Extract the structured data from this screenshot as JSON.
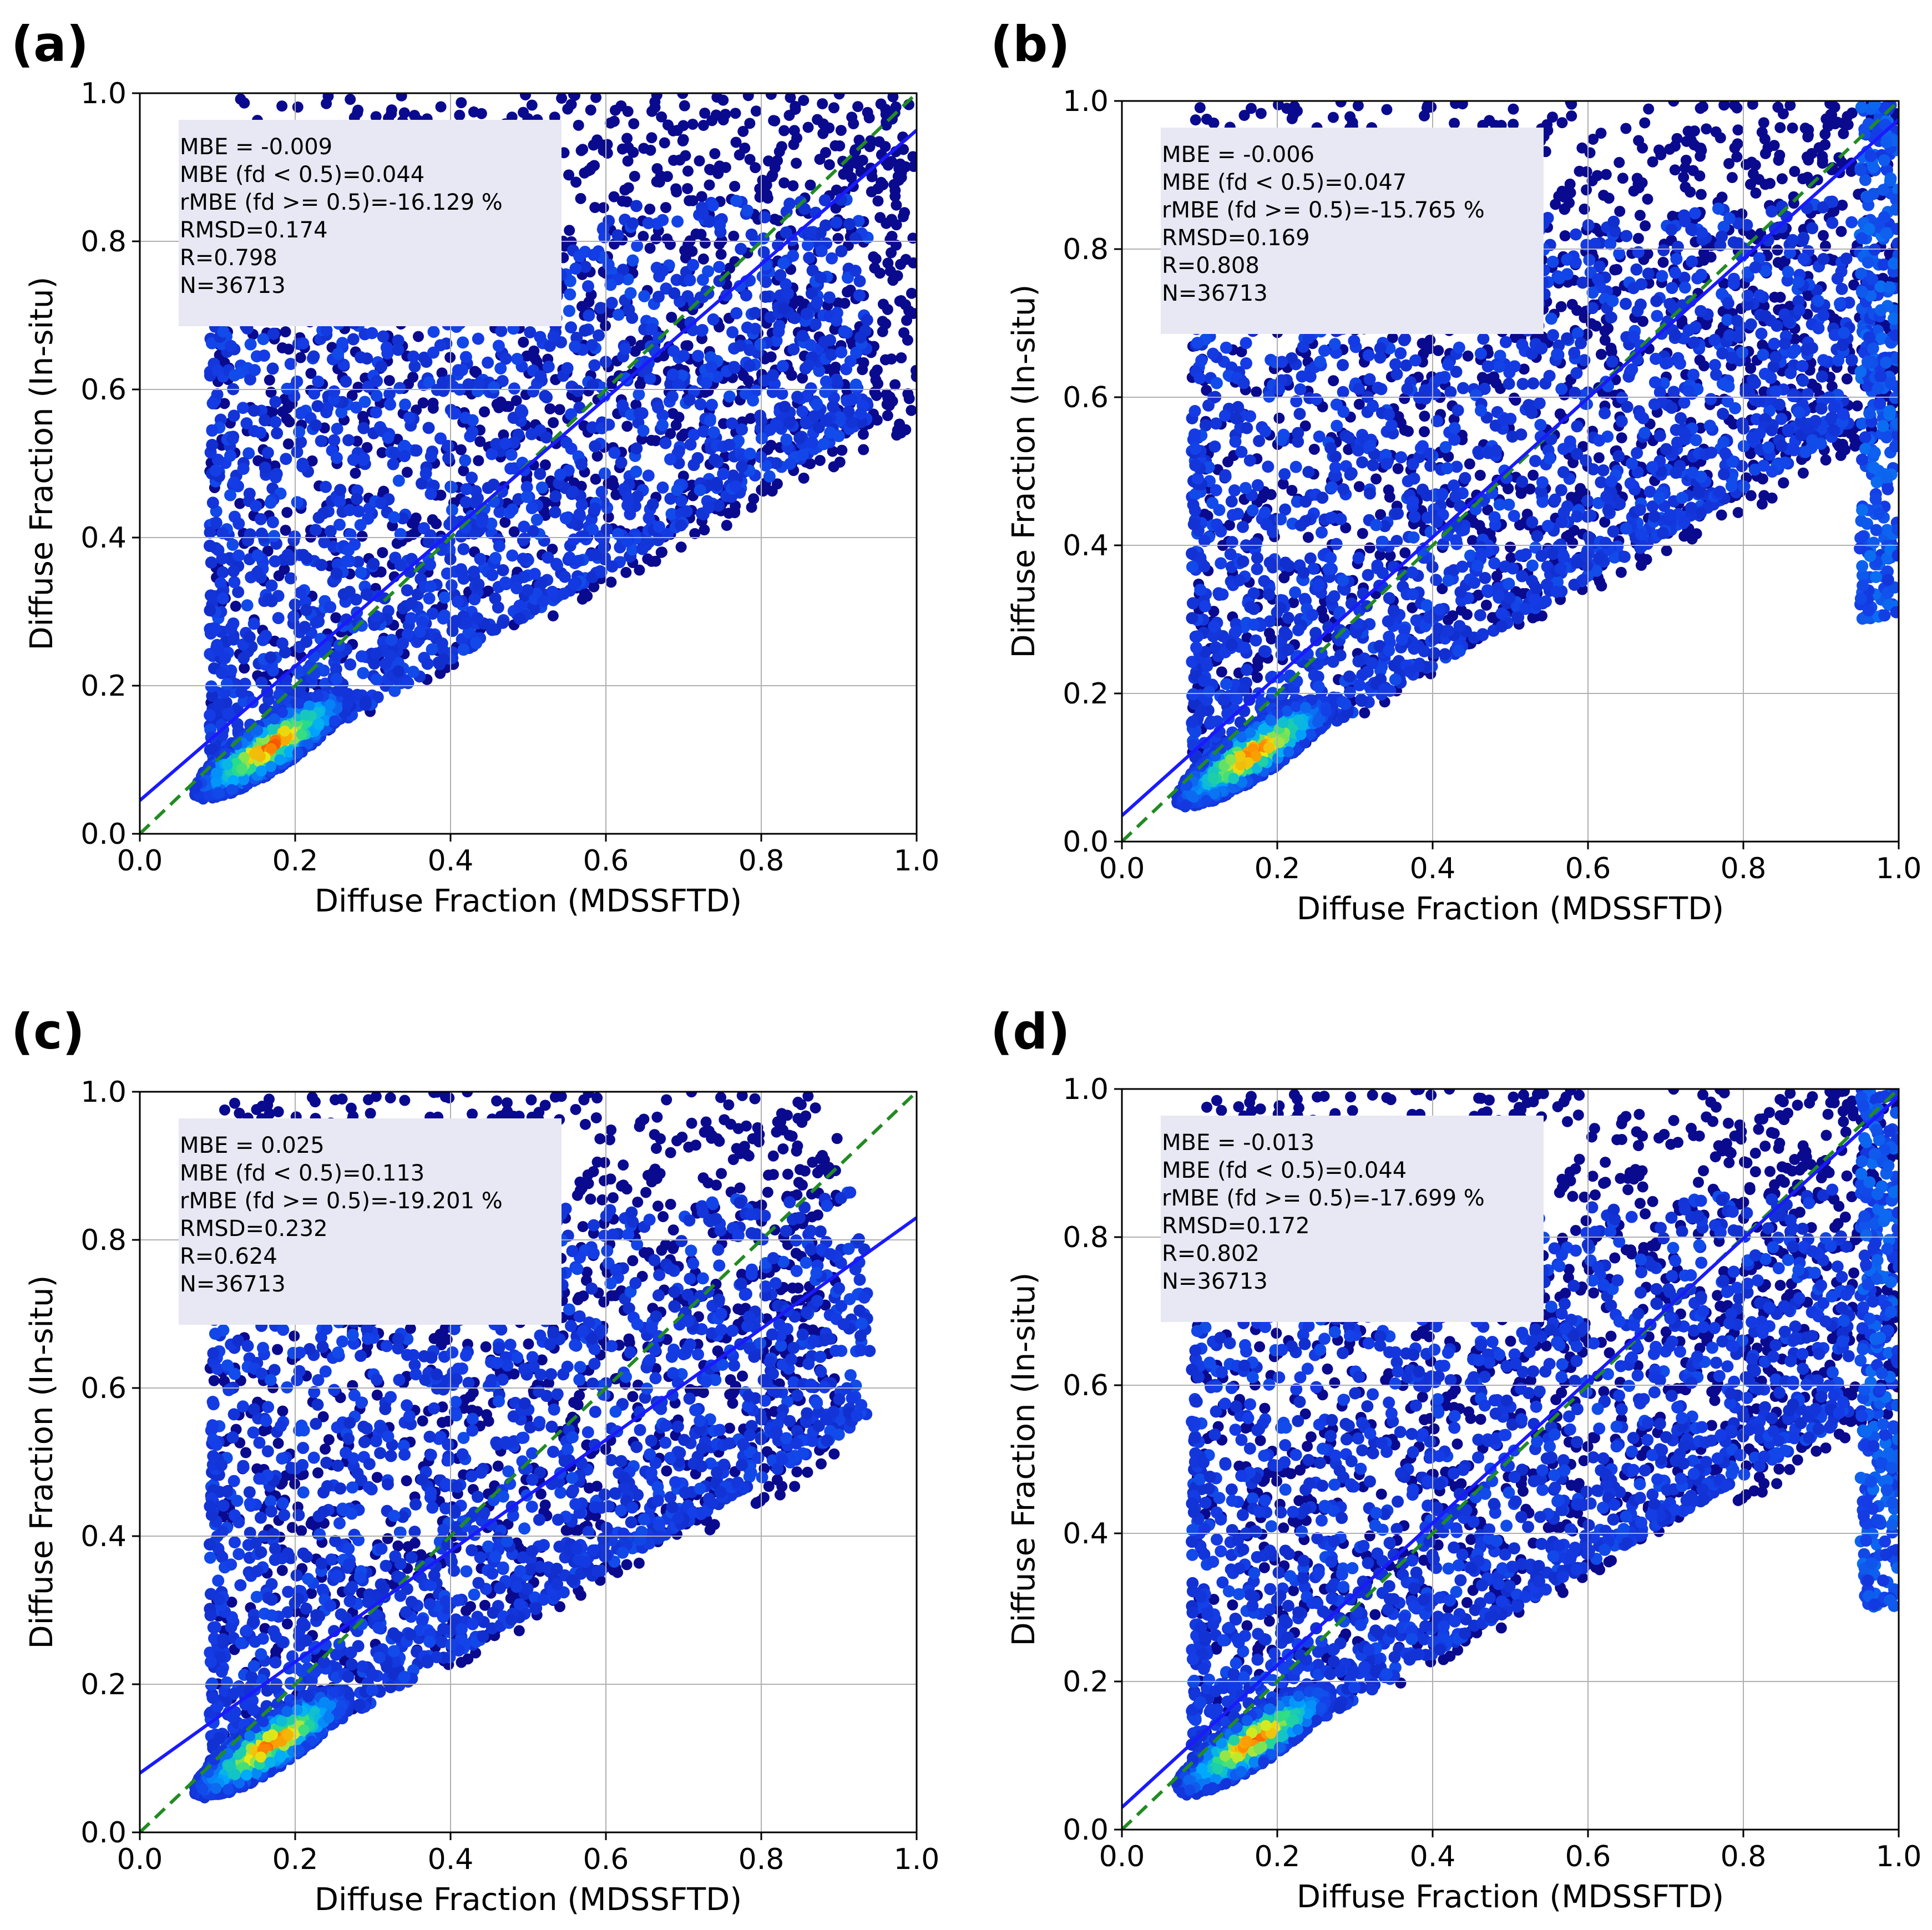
{
  "colors": {
    "identity_line": "#228b22",
    "fit_line": "#1a1aff",
    "stats_box": "#e8e8f4",
    "grid": "#b0b0b0",
    "density_low": "#0a0a8f",
    "density_mid": "#1e6bff",
    "density_high": "#ff1a00"
  },
  "chart_data": [
    {
      "type": "scatter",
      "panel_label": "(a)",
      "xlabel": "Diffuse Fraction (MDSSFTD)",
      "ylabel": "Diffuse Fraction (In-situ)",
      "xlim": [
        0.0,
        1.0
      ],
      "ylim": [
        0.0,
        1.0
      ],
      "x_ticks": [
        "0.0",
        "0.2",
        "0.4",
        "0.6",
        "0.8",
        "1.0"
      ],
      "y_ticks": [
        "0.0",
        "0.2",
        "0.4",
        "0.6",
        "0.8",
        "1.0"
      ],
      "grid": true,
      "stats": [
        "MBE = -0.009",
        "MBE (fd < 0.5)=0.044",
        "rMBE (fd >= 0.5)=-16.129 %",
        "RMSD=0.174",
        "R=0.798",
        "N=36713"
      ],
      "fit_line": {
        "intercept": 0.045,
        "slope": 0.905
      },
      "identity_line": {
        "intercept": 0.0,
        "slope": 1.0
      },
      "density_peak": [
        0.17,
        0.12
      ],
      "spread": 1.0,
      "edge_band": 0.0
    },
    {
      "type": "scatter",
      "panel_label": "(b)",
      "xlabel": "Diffuse Fraction (MDSSFTD)",
      "ylabel": "Diffuse Fraction (In-situ)",
      "xlim": [
        0.0,
        1.0
      ],
      "ylim": [
        0.0,
        1.0
      ],
      "x_ticks": [
        "0.0",
        "0.2",
        "0.4",
        "0.6",
        "0.8",
        "1.0"
      ],
      "y_ticks": [
        "0.0",
        "0.2",
        "0.4",
        "0.6",
        "0.8",
        "1.0"
      ],
      "grid": true,
      "stats": [
        "MBE = -0.006",
        "MBE (fd < 0.5)=0.047",
        "rMBE (fd >= 0.5)=-15.765 %",
        "RMSD=0.169",
        "R=0.808",
        "N=36713"
      ],
      "fit_line": {
        "intercept": 0.035,
        "slope": 0.94
      },
      "identity_line": {
        "intercept": 0.0,
        "slope": 1.0
      },
      "density_peak": [
        0.17,
        0.12
      ],
      "spread": 1.0,
      "edge_band": 1.0
    },
    {
      "type": "scatter",
      "panel_label": "(c)",
      "xlabel": "Diffuse Fraction (MDSSFTD)",
      "ylabel": "Diffuse Fraction (In-situ)",
      "xlim": [
        0.0,
        1.0
      ],
      "ylim": [
        0.0,
        1.0
      ],
      "x_ticks": [
        "0.0",
        "0.2",
        "0.4",
        "0.6",
        "0.8",
        "1.0"
      ],
      "y_ticks": [
        "0.0",
        "0.2",
        "0.4",
        "0.6",
        "0.8",
        "1.0"
      ],
      "grid": true,
      "stats": [
        "MBE = 0.025",
        "MBE (fd < 0.5)=0.113",
        "rMBE (fd >= 0.5)=-19.201 %",
        "RMSD=0.232",
        "R=0.624",
        "N=36713"
      ],
      "fit_line": {
        "intercept": 0.08,
        "slope": 0.75
      },
      "identity_line": {
        "intercept": 0.0,
        "slope": 1.0
      },
      "density_peak": [
        0.17,
        0.12
      ],
      "spread": 0.9,
      "edge_band": 0.0
    },
    {
      "type": "scatter",
      "panel_label": "(d)",
      "xlabel": "Diffuse Fraction (MDSSFTD)",
      "ylabel": "Diffuse Fraction (In-situ)",
      "xlim": [
        0.0,
        1.0
      ],
      "ylim": [
        0.0,
        1.0
      ],
      "x_ticks": [
        "0.0",
        "0.2",
        "0.4",
        "0.6",
        "0.8",
        "1.0"
      ],
      "y_ticks": [
        "0.0",
        "0.2",
        "0.4",
        "0.6",
        "0.8",
        "1.0"
      ],
      "grid": true,
      "stats": [
        "MBE = -0.013",
        "MBE (fd < 0.5)=0.044",
        "rMBE (fd >= 0.5)=-17.699 %",
        "RMSD=0.172",
        "R=0.802",
        "N=36713"
      ],
      "fit_line": {
        "intercept": 0.03,
        "slope": 0.96
      },
      "identity_line": {
        "intercept": 0.0,
        "slope": 1.0
      },
      "density_peak": [
        0.17,
        0.12
      ],
      "spread": 1.0,
      "edge_band": 1.0
    }
  ]
}
